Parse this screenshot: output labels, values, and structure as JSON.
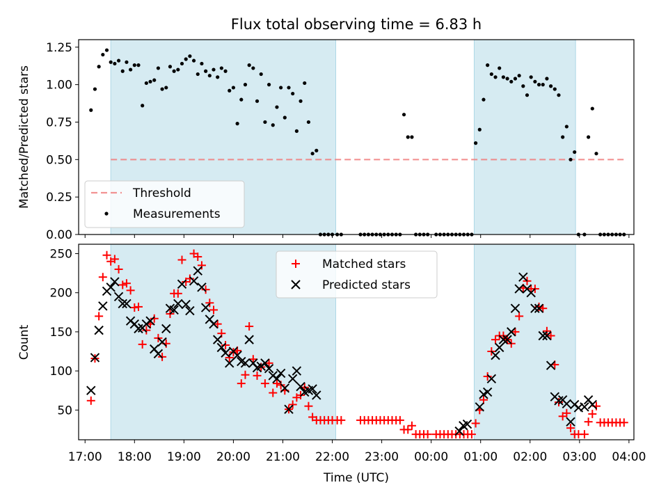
{
  "figure": {
    "title": "Flux total observing time = 6.83 h"
  },
  "colors": {
    "band": "#add8e6",
    "threshold": "#f08080",
    "matched": "#ff0000",
    "predicted": "#000000",
    "measurements": "#000000"
  },
  "chart_data": [
    {
      "type": "scatter",
      "title": "Flux total observing time = 6.83 h",
      "xlabel": "",
      "ylabel": "Matched/Predicted stars",
      "x_unit": "hours since 17:00 UTC",
      "xlim": [
        -0.13,
        11.1
      ],
      "ylim": [
        0.0,
        1.3
      ],
      "yticks": [
        0.0,
        0.25,
        0.5,
        0.75,
        1.0,
        1.25
      ],
      "ytick_labels": [
        "0.00",
        "0.25",
        "0.50",
        "0.75",
        "1.00",
        "1.25"
      ],
      "grid": false,
      "legend": {
        "location": "lower-left",
        "entries": [
          "Threshold",
          "Measurements"
        ]
      },
      "shaded_intervals": [
        [
          0.52,
          5.07
        ],
        [
          7.87,
          9.92
        ]
      ],
      "threshold": {
        "name": "Threshold",
        "y": 0.5,
        "x_range": [
          0.52,
          10.95
        ]
      },
      "series": [
        {
          "name": "Measurements",
          "x": [
            0.12,
            0.2,
            0.28,
            0.36,
            0.44,
            0.52,
            0.6,
            0.68,
            0.76,
            0.84,
            0.92,
            1.0,
            1.08,
            1.16,
            1.24,
            1.32,
            1.4,
            1.48,
            1.56,
            1.64,
            1.72,
            1.8,
            1.88,
            1.96,
            2.04,
            2.12,
            2.2,
            2.28,
            2.36,
            2.44,
            2.52,
            2.6,
            2.68,
            2.76,
            2.84,
            2.92,
            3.0,
            3.08,
            3.16,
            3.24,
            3.32,
            3.4,
            3.48,
            3.56,
            3.64,
            3.72,
            3.8,
            3.88,
            3.96,
            4.04,
            4.12,
            4.2,
            4.28,
            4.36,
            4.44,
            4.52,
            4.6,
            4.68,
            4.76,
            4.84,
            4.92,
            5.0,
            5.1,
            5.18,
            5.57,
            5.65,
            5.73,
            5.81,
            5.89,
            5.97,
            6.05,
            6.13,
            6.21,
            6.29,
            6.37,
            6.45,
            6.53,
            6.61,
            6.69,
            6.77,
            6.85,
            6.93,
            7.1,
            7.18,
            7.26,
            7.34,
            7.42,
            7.5,
            7.58,
            7.66,
            7.74,
            7.82,
            7.9,
            7.98,
            8.06,
            8.14,
            8.22,
            8.3,
            8.38,
            8.46,
            8.54,
            8.62,
            8.7,
            8.78,
            8.86,
            8.94,
            9.02,
            9.1,
            9.18,
            9.26,
            9.34,
            9.42,
            9.5,
            9.58,
            9.66,
            9.74,
            9.82,
            9.9,
            9.98,
            10.1,
            10.18,
            10.26,
            10.34,
            10.42,
            10.5,
            10.58,
            10.66,
            10.74,
            10.82,
            10.9
          ],
          "y": [
            0.83,
            0.97,
            1.12,
            1.2,
            1.23,
            1.15,
            1.14,
            1.16,
            1.09,
            1.15,
            1.1,
            1.13,
            1.13,
            0.86,
            1.01,
            1.02,
            1.03,
            1.11,
            0.97,
            0.98,
            1.12,
            1.09,
            1.1,
            1.14,
            1.17,
            1.19,
            1.16,
            1.07,
            1.14,
            1.09,
            1.06,
            1.1,
            1.05,
            1.11,
            1.09,
            0.96,
            0.98,
            0.74,
            0.9,
            1.0,
            1.13,
            1.11,
            0.89,
            1.07,
            0.75,
            1.0,
            0.73,
            0.85,
            0.98,
            0.78,
            0.98,
            0.94,
            0.69,
            0.89,
            1.01,
            0.75,
            0.54,
            0.56,
            0.0,
            0.0,
            0.0,
            0.0,
            0.0,
            0.0,
            0.0,
            0.0,
            0.0,
            0.0,
            0.0,
            0.0,
            0.0,
            0.0,
            0.0,
            0.0,
            0.0,
            0.8,
            0.65,
            0.65,
            0.0,
            0.0,
            0.0,
            0.0,
            0.0,
            0.0,
            0.0,
            0.0,
            0.0,
            0.0,
            0.0,
            0.0,
            0.0,
            0.0,
            0.61,
            0.7,
            0.9,
            1.13,
            1.07,
            1.05,
            1.11,
            1.05,
            1.04,
            1.02,
            1.04,
            1.06,
            0.99,
            0.93,
            1.05,
            1.02,
            1.0,
            1.0,
            1.04,
            0.99,
            0.97,
            0.93,
            0.65,
            0.72,
            0.5,
            0.55,
            0.0,
            0.0,
            0.65,
            0.84,
            0.54,
            0.0,
            0.0,
            0.0,
            0.0,
            0.0,
            0.0,
            0.0
          ]
        }
      ]
    },
    {
      "type": "scatter",
      "xlabel": "Time (UTC)",
      "ylabel": "Count",
      "x_unit": "hours since 17:00 UTC",
      "xlim": [
        -0.13,
        11.1
      ],
      "ylim": [
        12,
        262
      ],
      "yticks": [
        50,
        100,
        150,
        200,
        250
      ],
      "ytick_labels": [
        "50",
        "100",
        "150",
        "200",
        "250"
      ],
      "xticks": [
        0,
        1,
        2,
        3,
        4,
        5,
        6,
        7,
        8,
        9,
        10,
        11
      ],
      "xtick_labels": [
        "17:00",
        "18:00",
        "19:00",
        "20:00",
        "21:00",
        "22:00",
        "23:00",
        "00:00",
        "01:00",
        "02:00",
        "03:00",
        "04:00"
      ],
      "grid": false,
      "legend": {
        "location": "top-center",
        "entries": [
          "Matched stars",
          "Predicted stars"
        ]
      },
      "shaded_intervals": [
        [
          0.52,
          5.07
        ],
        [
          7.87,
          9.92
        ]
      ],
      "series": [
        {
          "name": "Matched stars",
          "marker": "+",
          "x": [
            0.12,
            0.2,
            0.28,
            0.36,
            0.44,
            0.52,
            0.6,
            0.68,
            0.76,
            0.84,
            0.92,
            1.0,
            1.08,
            1.16,
            1.24,
            1.32,
            1.4,
            1.48,
            1.56,
            1.64,
            1.72,
            1.8,
            1.88,
            1.96,
            2.04,
            2.12,
            2.2,
            2.28,
            2.36,
            2.44,
            2.52,
            2.6,
            2.68,
            2.76,
            2.84,
            2.92,
            3.0,
            3.08,
            3.16,
            3.24,
            3.32,
            3.4,
            3.48,
            3.56,
            3.64,
            3.72,
            3.8,
            3.88,
            3.96,
            4.04,
            4.12,
            4.2,
            4.28,
            4.36,
            4.44,
            4.52,
            4.6,
            4.68,
            4.76,
            4.84,
            4.92,
            5.0,
            5.1,
            5.18,
            5.57,
            5.65,
            5.73,
            5.81,
            5.89,
            5.97,
            6.05,
            6.13,
            6.21,
            6.29,
            6.37,
            6.45,
            6.53,
            6.61,
            6.69,
            6.77,
            6.85,
            6.93,
            7.1,
            7.18,
            7.26,
            7.34,
            7.42,
            7.5,
            7.58,
            7.66,
            7.74,
            7.82,
            7.9,
            7.98,
            8.06,
            8.14,
            8.22,
            8.3,
            8.38,
            8.46,
            8.54,
            8.62,
            8.7,
            8.78,
            8.86,
            8.94,
            9.02,
            9.1,
            9.18,
            9.26,
            9.34,
            9.42,
            9.5,
            9.58,
            9.66,
            9.74,
            9.82,
            9.9,
            9.98,
            10.1,
            10.18,
            10.26,
            10.34,
            10.42,
            10.5,
            10.58,
            10.66,
            10.74,
            10.82,
            10.9
          ],
          "y": [
            62,
            116,
            170,
            220,
            248,
            240,
            243,
            230,
            210,
            212,
            203,
            181,
            182,
            134,
            152,
            160,
            167,
            142,
            118,
            135,
            173,
            199,
            199,
            242,
            214,
            218,
            250,
            246,
            235,
            204,
            187,
            178,
            160,
            148,
            133,
            117,
            124,
            126,
            84,
            95,
            157,
            115,
            94,
            105,
            84,
            110,
            72,
            84,
            82,
            75,
            51,
            57,
            66,
            69,
            79,
            55,
            41,
            37,
            37,
            37,
            37,
            37,
            37,
            37,
            37,
            37,
            37,
            37,
            37,
            37,
            37,
            37,
            37,
            37,
            37,
            25,
            25,
            30,
            19,
            19,
            19,
            19,
            19,
            19,
            19,
            19,
            19,
            19,
            19,
            19,
            19,
            19,
            33,
            50,
            63,
            93,
            125,
            140,
            145,
            145,
            140,
            135,
            150,
            170,
            206,
            215,
            205,
            205,
            182,
            180,
            151,
            145,
            108,
            60,
            42,
            46,
            27,
            19,
            19,
            19,
            35,
            45,
            55,
            34,
            34,
            34,
            34,
            34,
            34,
            34
          ]
        },
        {
          "name": "Predicted stars",
          "marker": "x",
          "x": [
            0.12,
            0.2,
            0.28,
            0.36,
            0.44,
            0.52,
            0.6,
            0.68,
            0.76,
            0.84,
            0.92,
            1.0,
            1.08,
            1.16,
            1.24,
            1.32,
            1.4,
            1.48,
            1.56,
            1.64,
            1.72,
            1.8,
            1.88,
            1.96,
            2.04,
            2.12,
            2.2,
            2.28,
            2.36,
            2.44,
            2.52,
            2.6,
            2.68,
            2.76,
            2.84,
            2.92,
            3.0,
            3.08,
            3.16,
            3.24,
            3.32,
            3.4,
            3.48,
            3.56,
            3.64,
            3.72,
            3.8,
            3.88,
            3.96,
            4.04,
            4.12,
            4.2,
            4.28,
            4.36,
            4.44,
            4.52,
            4.6,
            4.68,
            7.57,
            7.65,
            7.73,
            7.98,
            8.06,
            8.14,
            8.22,
            8.3,
            8.38,
            8.46,
            8.54,
            8.62,
            8.7,
            8.78,
            8.86,
            8.94,
            9.02,
            9.1,
            9.18,
            9.26,
            9.34,
            9.42,
            9.5,
            9.58,
            9.66,
            9.74,
            9.82,
            9.9,
            9.98,
            10.1,
            10.18,
            10.26
          ],
          "y": [
            75,
            117,
            152,
            183,
            202,
            207,
            214,
            195,
            186,
            186,
            164,
            160,
            154,
            155,
            160,
            164,
            128,
            122,
            137,
            154,
            180,
            178,
            186,
            211,
            185,
            177,
            215,
            228,
            207,
            181,
            166,
            160,
            140,
            130,
            123,
            110,
            125,
            120,
            112,
            110,
            140,
            110,
            104,
            106,
            110,
            103,
            94,
            90,
            97,
            78,
            51,
            90,
            100,
            80,
            73,
            75,
            77,
            69,
            23,
            30,
            32,
            54,
            70,
            73,
            90,
            120,
            130,
            140,
            140,
            150,
            180,
            205,
            220,
            205,
            200,
            180,
            180,
            145,
            145,
            107,
            67,
            62,
            63,
            58,
            35,
            57,
            53,
            54,
            63,
            57
          ]
        }
      ]
    }
  ]
}
